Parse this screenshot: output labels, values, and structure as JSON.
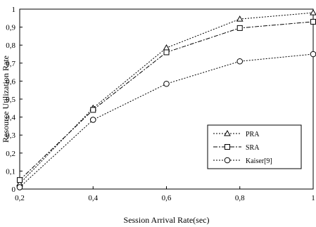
{
  "chart_data": {
    "type": "line",
    "title": "",
    "xlabel": "Session Arrival Rate(sec)",
    "ylabel": "Resource Utilization Rate",
    "x": [
      0.2,
      0.4,
      0.6,
      0.8,
      1.0
    ],
    "xlim": [
      0.2,
      1.0
    ],
    "ylim": [
      0,
      1
    ],
    "x_tick_labels": [
      "0,2",
      "0,4",
      "0,6",
      "0,8",
      "1"
    ],
    "y_tick_labels": [
      "0",
      "0,1",
      "0,2",
      "0,3",
      "0,4",
      "0,5",
      "0,6",
      "0,7",
      "0,8",
      "0,9",
      "1"
    ],
    "grid": false,
    "legend_position": "lower-right",
    "series": [
      {
        "name": "PRA",
        "marker": "triangle",
        "dash": "2,2",
        "values": [
          0.03,
          0.45,
          0.785,
          0.945,
          0.98
        ]
      },
      {
        "name": "SRA",
        "marker": "square",
        "dash": "6,2,2,2",
        "values": [
          0.05,
          0.44,
          0.76,
          0.895,
          0.93
        ]
      },
      {
        "name": "Kaiser[9]",
        "marker": "circle",
        "dash": "2,2",
        "values": [
          0.01,
          0.385,
          0.585,
          0.71,
          0.75
        ]
      }
    ]
  }
}
